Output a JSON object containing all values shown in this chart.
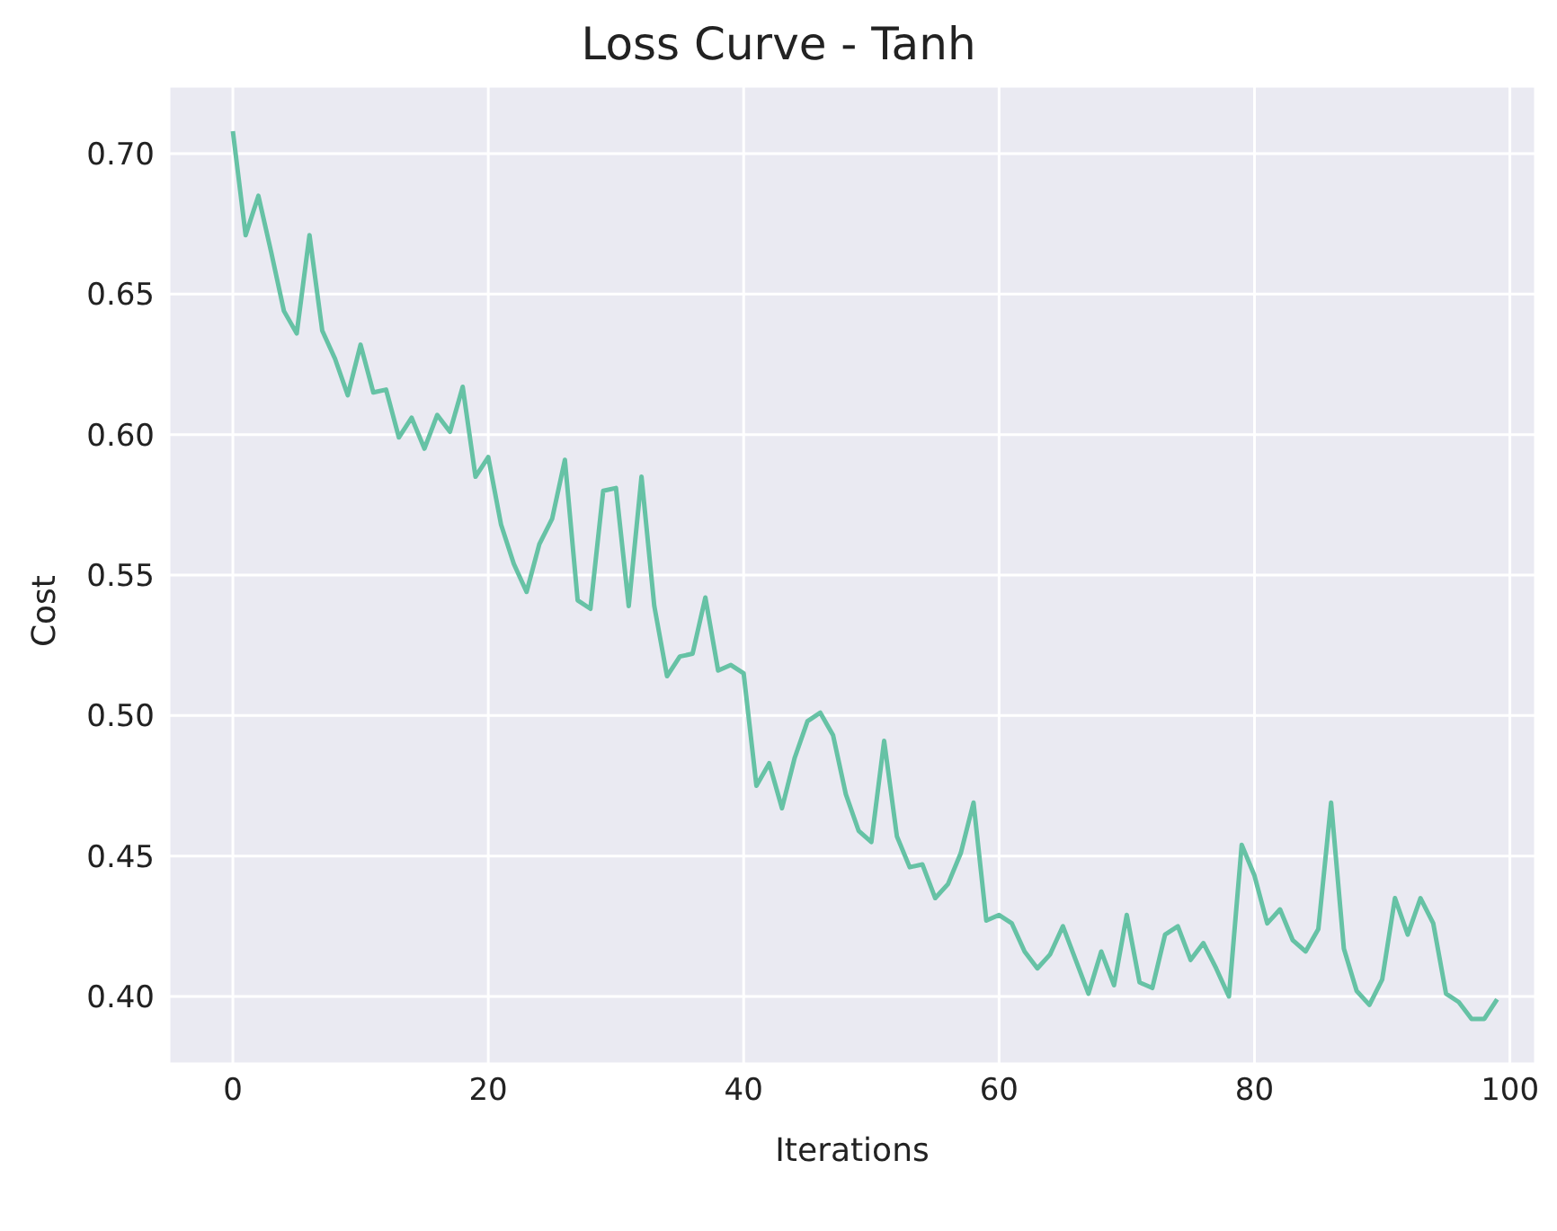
{
  "chart_data": {
    "type": "line",
    "title": "Loss Curve - Tanh",
    "xlabel": "Iterations",
    "ylabel": "Cost",
    "x": [
      0,
      1,
      2,
      3,
      4,
      5,
      6,
      7,
      8,
      9,
      10,
      11,
      12,
      13,
      14,
      15,
      16,
      17,
      18,
      19,
      20,
      21,
      22,
      23,
      24,
      25,
      26,
      27,
      28,
      29,
      30,
      31,
      32,
      33,
      34,
      35,
      36,
      37,
      38,
      39,
      40,
      41,
      42,
      43,
      44,
      45,
      46,
      47,
      48,
      49,
      50,
      51,
      52,
      53,
      54,
      55,
      56,
      57,
      58,
      59,
      60,
      61,
      62,
      63,
      64,
      65,
      66,
      67,
      68,
      69,
      70,
      71,
      72,
      73,
      74,
      75,
      76,
      77,
      78,
      79,
      80,
      81,
      82,
      83,
      84,
      85,
      86,
      87,
      88,
      89,
      90,
      91,
      92,
      93,
      94,
      95,
      96,
      97,
      98,
      99
    ],
    "series": [
      {
        "color": "#66c2a5",
        "values": [
          0.708,
          0.671,
          0.685,
          0.665,
          0.644,
          0.636,
          0.671,
          0.637,
          0.627,
          0.614,
          0.632,
          0.615,
          0.616,
          0.599,
          0.606,
          0.595,
          0.607,
          0.601,
          0.617,
          0.585,
          0.592,
          0.568,
          0.554,
          0.544,
          0.561,
          0.57,
          0.591,
          0.541,
          0.538,
          0.58,
          0.581,
          0.539,
          0.585,
          0.539,
          0.514,
          0.521,
          0.522,
          0.542,
          0.516,
          0.518,
          0.515,
          0.475,
          0.483,
          0.467,
          0.485,
          0.498,
          0.501,
          0.493,
          0.472,
          0.459,
          0.455,
          0.491,
          0.457,
          0.446,
          0.447,
          0.435,
          0.44,
          0.451,
          0.469,
          0.427,
          0.429,
          0.426,
          0.416,
          0.41,
          0.415,
          0.425,
          0.413,
          0.401,
          0.416,
          0.404,
          0.429,
          0.405,
          0.403,
          0.422,
          0.425,
          0.413,
          0.419,
          0.41,
          0.4,
          0.454,
          0.443,
          0.426,
          0.431,
          0.42,
          0.416,
          0.424,
          0.469,
          0.417,
          0.402,
          0.397,
          0.406,
          0.435,
          0.422,
          0.435,
          0.426,
          0.401,
          0.398,
          0.392,
          0.392,
          0.399
        ]
      }
    ],
    "xlim": [
      -5,
      102
    ],
    "xticks": [
      0,
      20,
      40,
      60,
      80,
      100
    ],
    "ylim": [
      0.376,
      0.724
    ],
    "yticks": [
      {
        "value": 0.4,
        "label": "0.40"
      },
      {
        "value": 0.45,
        "label": "0.45"
      },
      {
        "value": 0.5,
        "label": "0.50"
      },
      {
        "value": 0.55,
        "label": "0.55"
      },
      {
        "value": 0.6,
        "label": "0.60"
      },
      {
        "value": 0.65,
        "label": "0.65"
      },
      {
        "value": 0.7,
        "label": "0.70"
      }
    ],
    "grid": true,
    "marker": "none",
    "line_style": "solid"
  }
}
